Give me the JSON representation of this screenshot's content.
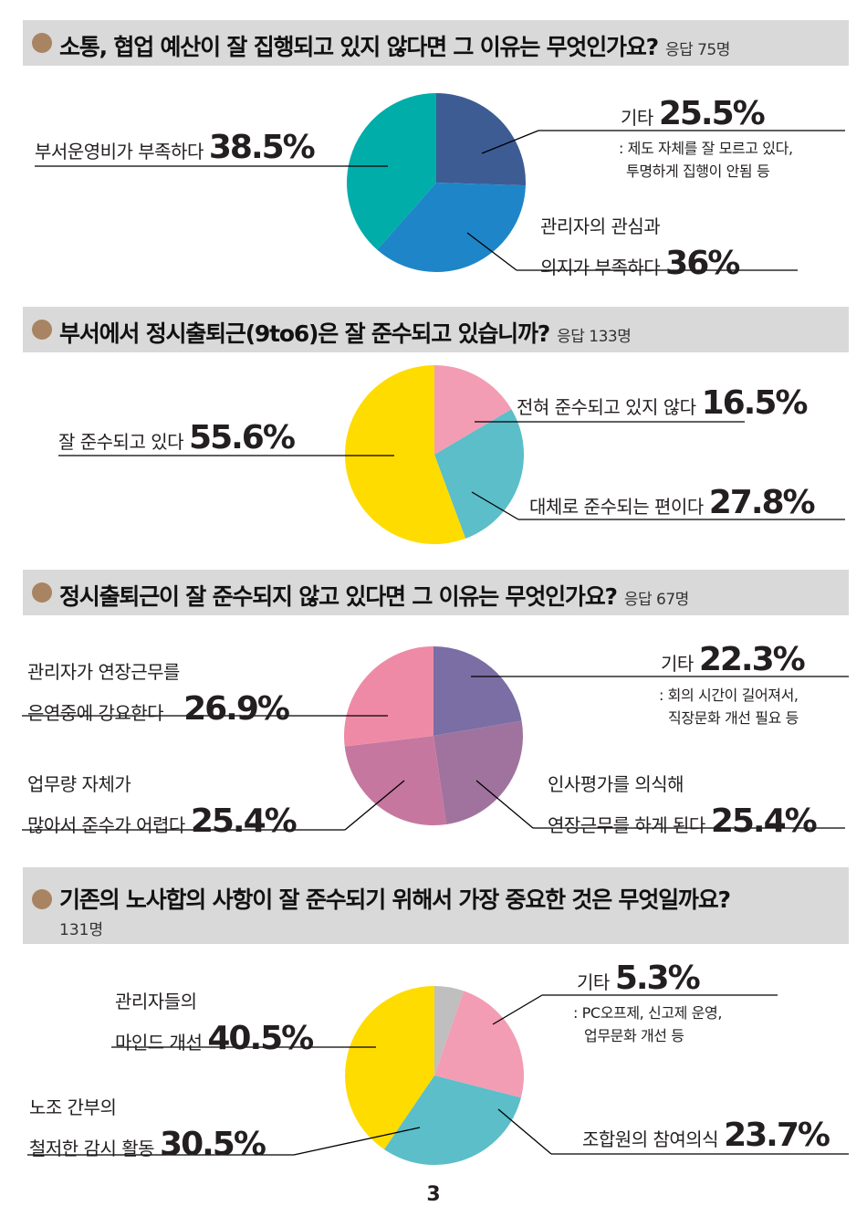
{
  "page_number": "3",
  "questions": [
    {
      "title": "소통, 협업 예산이 잘 집행되고 있지 않다면 그 이유는 무엇인가요?",
      "respondents": "응답 75명",
      "labels": {
        "other_text": "기타",
        "other_pct": "25.5%",
        "other_note1": ": 제도 자체를 잘 모르고 있다,",
        "other_note2": "투명하게 집행이 안됨 등",
        "a_text": "부서운영비가 부족하다",
        "a_pct": "38.5%",
        "b_text1": "관리자의 관심과",
        "b_text2": "의지가 부족하다",
        "b_pct": "36%"
      }
    },
    {
      "title": "부서에서 정시출퇴근(9to6)은 잘 준수되고 있습니까?",
      "respondents": "응답 133명",
      "labels": {
        "a_text": "전혀 준수되고 있지 않다",
        "a_pct": "16.5%",
        "b_text": "대체로 준수되는 편이다",
        "b_pct": "27.8%",
        "c_text": "잘 준수되고 있다",
        "c_pct": "55.6%"
      }
    },
    {
      "title": "정시출퇴근이 잘 준수되지 않고 있다면 그 이유는 무엇인가요?",
      "respondents": "응답 67명",
      "labels": {
        "other_text": "기타",
        "other_pct": "22.3%",
        "other_note1": ": 회의 시간이 길어져서,",
        "other_note2": "직장문화 개선 필요 등",
        "a_text1": "인사평가를 의식해",
        "a_text2": "연장근무를 하게 된다",
        "a_pct": "25.4%",
        "b_text1": "업무량 자체가",
        "b_text2": "많아서 준수가 어렵다",
        "b_pct": "25.4%",
        "c_text1": "관리자가 연장근무를",
        "c_text2": "은연중에 강요한다",
        "c_pct": "26.9%"
      }
    },
    {
      "title": "기존의 노사합의 사항이 잘 준수되기 위해서 가장 중요한 것은 무엇일까요?",
      "respondents": "131명",
      "labels": {
        "other_text": "기타",
        "other_pct": "5.3%",
        "other_note1": ": PC오프제, 신고제 운영,",
        "other_note2": "업무문화 개선 등",
        "a_text": "조합원의 참여의식",
        "a_pct": "23.7%",
        "b_text1": "노조 간부의",
        "b_text2": "철저한 감시 활동",
        "b_pct": "30.5%",
        "c_text1": "관리자들의",
        "c_text2": "마인드 개선",
        "c_pct": "40.5%"
      }
    }
  ],
  "chart_data": [
    {
      "type": "pie",
      "title": "소통, 협업 예산이 잘 집행되고 있지 않다면 그 이유는 무엇인가요?",
      "categories": [
        "기타",
        "관리자의 관심과 의지가 부족하다",
        "부서운영비가 부족하다"
      ],
      "values": [
        25.5,
        36,
        38.5
      ],
      "colors": [
        "#3d5c94",
        "#1e86c8",
        "#00ada9"
      ]
    },
    {
      "type": "pie",
      "title": "부서에서 정시출퇴근(9to6)은 잘 준수되고 있습니까?",
      "categories": [
        "전혀 준수되고 있지 않다",
        "대체로 준수되는 편이다",
        "잘 준수되고 있다"
      ],
      "values": [
        16.5,
        27.8,
        55.6
      ],
      "colors": [
        "#f29db4",
        "#5bbec9",
        "#ffdc00"
      ]
    },
    {
      "type": "pie",
      "title": "정시출퇴근이 잘 준수되지 않고 있다면 그 이유는 무엇인가요?",
      "categories": [
        "기타",
        "인사평가를 의식해 연장근무를 하게 된다",
        "업무량 자체가 많아서 준수가 어렵다",
        "관리자가 연장근무를 은연중에 강요한다"
      ],
      "values": [
        22.3,
        25.4,
        25.4,
        26.9
      ],
      "colors": [
        "#7a6ea4",
        "#a0739e",
        "#c6779f",
        "#ef8aa6"
      ]
    },
    {
      "type": "pie",
      "title": "기존의 노사합의 사항이 잘 준수되기 위해서 가장 중요한 것은 무엇일까요?",
      "categories": [
        "기타",
        "조합원의 참여의식",
        "노조 간부의 철저한 감시 활동",
        "관리자들의 마인드 개선"
      ],
      "values": [
        5.3,
        23.7,
        30.5,
        40.5
      ],
      "colors": [
        "#bfbfbf",
        "#f29db4",
        "#5bbec9",
        "#ffdc00"
      ]
    }
  ]
}
